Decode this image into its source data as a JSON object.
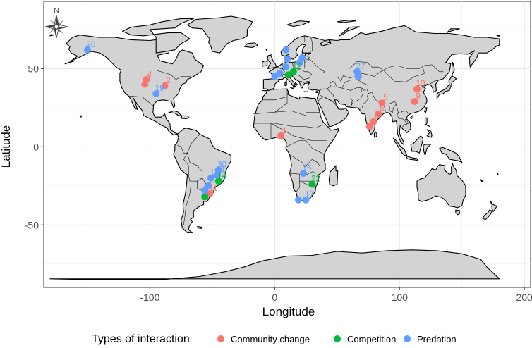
{
  "chart_data": {
    "type": "scatter",
    "map": "world",
    "xlabel": "Longitude",
    "ylabel": "Latitude",
    "xlim": [
      -185,
      205
    ],
    "ylim": [
      -90,
      93
    ],
    "xticks": [
      -100,
      0,
      100,
      200
    ],
    "yticks": [
      -50,
      0,
      50
    ],
    "xtick_labels": [
      "-100",
      "0",
      "100",
      "200"
    ],
    "ytick_labels": [
      "-50",
      "0",
      "50"
    ],
    "grid": true,
    "legend_position": "bottom",
    "legend_title": "Types of interaction",
    "compass_label": "N",
    "series": [
      {
        "name": "Community change",
        "color": "#F8766D"
      },
      {
        "name": "Competition",
        "color": "#00BA38"
      },
      {
        "name": "Predation",
        "color": "#619CFF"
      }
    ],
    "points": [
      {
        "id": "1",
        "lon": 5,
        "lat": 7,
        "type": "Community change"
      },
      {
        "id": "2",
        "lon": -88,
        "lat": 39,
        "type": "Community change"
      },
      {
        "id": "3",
        "lon": -104,
        "lat": 40,
        "type": "Community change"
      },
      {
        "id": "4",
        "lon": -103,
        "lat": 43,
        "type": "Community change"
      },
      {
        "id": "5",
        "lon": 86,
        "lat": 28,
        "type": "Community change"
      },
      {
        "id": "6",
        "lon": 83,
        "lat": 21,
        "type": "Community change"
      },
      {
        "id": "7",
        "lon": 76,
        "lat": 13,
        "type": "Community change"
      },
      {
        "id": "8",
        "lon": 79,
        "lat": 16,
        "type": "Community change"
      },
      {
        "id": "9",
        "lon": 112,
        "lat": 29,
        "type": "Community change"
      },
      {
        "id": "10",
        "lon": 114,
        "lat": 37,
        "type": "Community change"
      },
      {
        "id": "11",
        "lon": -52,
        "lat": -30,
        "type": "Community change"
      },
      {
        "id": "12",
        "lon": 15,
        "lat": 48,
        "type": "Competition"
      },
      {
        "id": "14",
        "lon": -45,
        "lat": -22,
        "type": "Competition"
      },
      {
        "id": "22",
        "lon": 30,
        "lat": -24,
        "type": "Competition"
      },
      {
        "id": "",
        "lon": -56,
        "lat": -32,
        "type": "Competition"
      },
      {
        "id": "",
        "lon": 11,
        "lat": 46,
        "type": "Competition"
      },
      {
        "id": "16",
        "lon": 23,
        "lat": -17,
        "type": "Predation"
      },
      {
        "id": "17",
        "lon": 25,
        "lat": -34,
        "type": "Predation"
      },
      {
        "id": "18",
        "lon": -51,
        "lat": -20,
        "type": "Predation"
      },
      {
        "id": "19",
        "lon": -95,
        "lat": 34,
        "type": "Predation"
      },
      {
        "id": "20",
        "lon": -150,
        "lat": 62,
        "type": "Predation"
      },
      {
        "id": "21",
        "lon": -46,
        "lat": -18,
        "type": "Predation"
      },
      {
        "id": "27",
        "lon": 66,
        "lat": 48,
        "type": "Predation"
      },
      {
        "id": "30",
        "lon": -45,
        "lat": -15,
        "type": "Predation"
      },
      {
        "id": "32",
        "lon": -56,
        "lat": -28,
        "type": "Predation"
      },
      {
        "id": "",
        "lon": 19,
        "lat": -34,
        "type": "Predation"
      },
      {
        "id": "",
        "lon": 4,
        "lat": 47,
        "type": "Predation"
      },
      {
        "id": "",
        "lon": 0,
        "lat": 45,
        "type": "Predation"
      },
      {
        "id": "",
        "lon": 9,
        "lat": 51,
        "type": "Predation"
      },
      {
        "id": "",
        "lon": 10,
        "lat": 56,
        "type": "Predation"
      },
      {
        "id": "",
        "lon": 9,
        "lat": 62,
        "type": "Predation"
      },
      {
        "id": "",
        "lon": 20,
        "lat": 54,
        "type": "Predation"
      },
      {
        "id": "",
        "lon": 22,
        "lat": 57,
        "type": "Predation"
      },
      {
        "id": "",
        "lon": -53,
        "lat": -25,
        "type": "Predation"
      },
      {
        "id": "",
        "lon": 67,
        "lat": 45,
        "type": "Predation"
      }
    ]
  }
}
